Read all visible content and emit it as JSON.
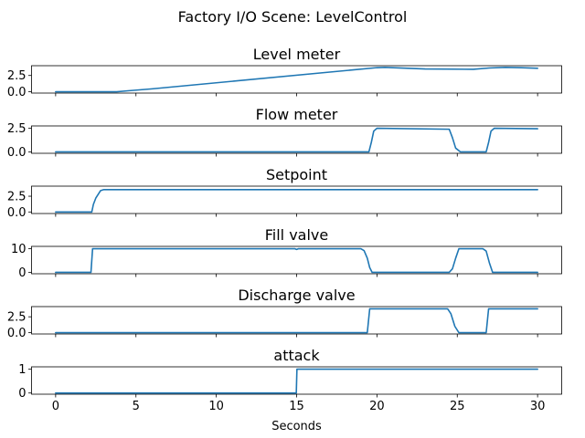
{
  "figure": {
    "title": "Factory I/O Scene: LevelControl",
    "line_color": "#1f77b4"
  },
  "chart_data": [
    {
      "type": "line",
      "title": "Level meter",
      "xlabel": "",
      "ylabel": "",
      "xlim": [
        -1.5,
        31.5
      ],
      "ylim": [
        -0.2,
        4.0
      ],
      "yticks": [
        0.0,
        2.5
      ],
      "ytick_labels": [
        "0.0",
        "2.5"
      ],
      "xticks": [
        0,
        5,
        10,
        15,
        20,
        25,
        30
      ],
      "xtick_labels": [],
      "grid": false,
      "series": [
        {
          "x": [
            0,
            3.8,
            4.5,
            6,
            20,
            20.5,
            21,
            23,
            26,
            27,
            28,
            29,
            30
          ],
          "y": [
            0,
            0,
            0.15,
            0.45,
            3.7,
            3.75,
            3.7,
            3.5,
            3.45,
            3.65,
            3.75,
            3.7,
            3.6
          ]
        }
      ]
    },
    {
      "type": "line",
      "title": "Flow meter",
      "xlabel": "",
      "ylabel": "",
      "xlim": [
        -1.5,
        31.5
      ],
      "ylim": [
        -0.15,
        2.75
      ],
      "yticks": [
        0.0,
        2.5
      ],
      "ytick_labels": [
        "0.0",
        "2.5"
      ],
      "xticks": [
        0,
        5,
        10,
        15,
        20,
        25,
        30
      ],
      "xtick_labels": [],
      "grid": false,
      "series": [
        {
          "x": [
            0,
            19.5,
            19.65,
            19.8,
            20,
            24.5,
            24.7,
            24.9,
            25.2,
            26.8,
            26.95,
            27.1,
            27.3,
            30
          ],
          "y": [
            0,
            0,
            1.0,
            2.2,
            2.5,
            2.4,
            1.5,
            0.4,
            0,
            0,
            1.0,
            2.2,
            2.5,
            2.45
          ]
        }
      ]
    },
    {
      "type": "line",
      "title": "Setpoint",
      "xlabel": "",
      "ylabel": "",
      "xlim": [
        -1.5,
        31.5
      ],
      "ylim": [
        -0.25,
        4.1
      ],
      "yticks": [
        0.0,
        2.5
      ],
      "ytick_labels": [
        "0.0",
        "2.5"
      ],
      "xticks": [
        0,
        5,
        10,
        15,
        20,
        25,
        30
      ],
      "xtick_labels": [],
      "grid": false,
      "series": [
        {
          "x": [
            0,
            2.25,
            2.35,
            2.5,
            2.65,
            2.8,
            3.0,
            30
          ],
          "y": [
            0,
            0,
            1.2,
            2.2,
            2.8,
            3.4,
            3.55,
            3.55
          ]
        }
      ]
    },
    {
      "type": "line",
      "title": "Fill valve",
      "xlabel": "",
      "ylabel": "",
      "xlim": [
        -1.5,
        31.5
      ],
      "ylim": [
        -0.6,
        11.0
      ],
      "yticks": [
        0,
        10
      ],
      "ytick_labels": [
        "0",
        "10"
      ],
      "xticks": [
        0,
        5,
        10,
        15,
        20,
        25,
        30
      ],
      "xtick_labels": [],
      "grid": false,
      "series": [
        {
          "x": [
            0,
            2.2,
            2.3,
            14.9,
            15.0,
            15.1,
            19.0,
            19.2,
            19.4,
            19.55,
            19.7,
            24.5,
            24.7,
            24.9,
            25.1,
            26.6,
            26.8,
            27.0,
            27.2,
            30
          ],
          "y": [
            0,
            0,
            10,
            10,
            9.7,
            10,
            10,
            9.2,
            6.0,
            2.0,
            0,
            0,
            1.5,
            6.0,
            10,
            10,
            9.0,
            4.0,
            0,
            0
          ]
        }
      ]
    },
    {
      "type": "line",
      "title": "Discharge valve",
      "xlabel": "",
      "ylabel": "",
      "xlim": [
        -1.5,
        31.5
      ],
      "ylim": [
        -0.2,
        4.1
      ],
      "yticks": [
        0.0,
        2.5
      ],
      "ytick_labels": [
        "0.0",
        "2.5"
      ],
      "xticks": [
        0,
        5,
        10,
        15,
        20,
        25,
        30
      ],
      "xtick_labels": [],
      "grid": false,
      "series": [
        {
          "x": [
            0,
            19.4,
            19.55,
            24.4,
            24.6,
            24.85,
            25.1,
            26.8,
            26.95,
            30
          ],
          "y": [
            0,
            0,
            3.75,
            3.75,
            3.0,
            1.0,
            0,
            0,
            3.75,
            3.75
          ]
        }
      ]
    },
    {
      "type": "line",
      "title": "attack",
      "xlabel": "Seconds",
      "ylabel": "",
      "xlim": [
        -1.5,
        31.5
      ],
      "ylim": [
        -0.05,
        1.1
      ],
      "yticks": [
        0,
        1
      ],
      "ytick_labels": [
        "0",
        "1"
      ],
      "xticks": [
        0,
        5,
        10,
        15,
        20,
        25,
        30
      ],
      "xtick_labels": [
        "0",
        "5",
        "10",
        "15",
        "20",
        "25",
        "30"
      ],
      "grid": false,
      "series": [
        {
          "x": [
            0,
            14.98,
            15.02,
            30
          ],
          "y": [
            0,
            0,
            1,
            1
          ]
        }
      ]
    }
  ]
}
